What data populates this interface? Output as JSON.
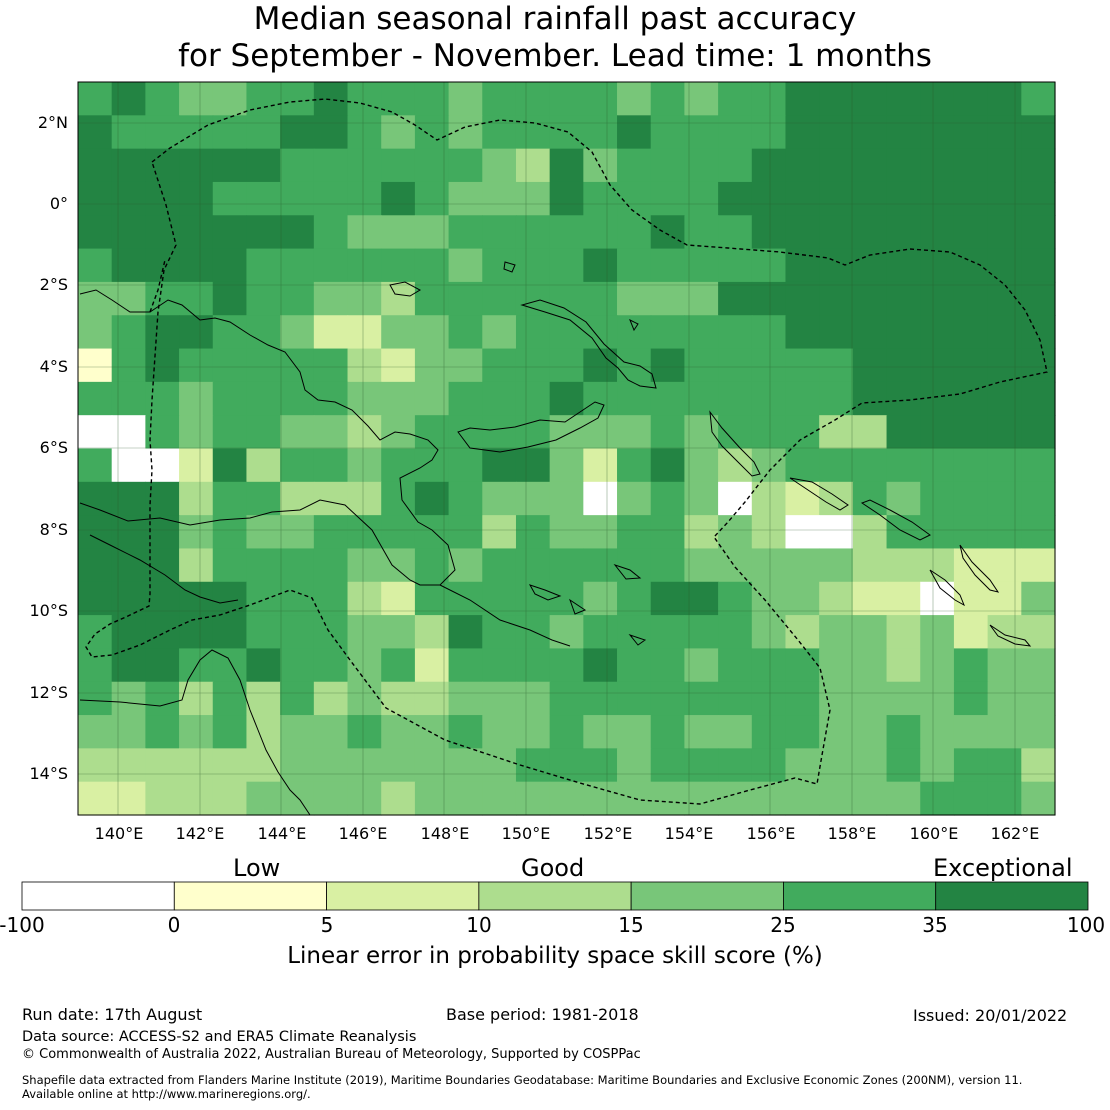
{
  "title_line1": "Median seasonal rainfall past accuracy",
  "title_line2": "for September - November. Lead time: 1 months",
  "lat_labels": [
    "2°N",
    "0°",
    "2°S",
    "4°S",
    "6°S",
    "8°S",
    "10°S",
    "12°S",
    "14°S"
  ],
  "lon_labels": [
    "140°E",
    "142°E",
    "144°E",
    "146°E",
    "148°E",
    "150°E",
    "152°E",
    "154°E",
    "156°E",
    "158°E",
    "160°E",
    "162°E"
  ],
  "colorbar": {
    "categories": [
      "Low",
      "Good",
      "Exceptional"
    ],
    "ticks": [
      "-100",
      "0",
      "5",
      "10",
      "15",
      "25",
      "35",
      "100"
    ],
    "colors": [
      "#ffffff",
      "#ffffcc",
      "#d9f0a3",
      "#addd8e",
      "#78c679",
      "#41ab5d",
      "#238443"
    ],
    "label": "Linear error in probability space skill score (%)"
  },
  "footer": {
    "run_date": "Run date: 17th August",
    "base_period": "Base period: 1981-2018",
    "issued": "Issued: 20/01/2022",
    "data_source": "Data source: ACCESS-S2 and ERA5 Climate Reanalysis",
    "copyright": "© Commonwealth of Australia 2022, Australian Bureau of Meteorology, Supported by COSPPac",
    "shapefile_line1": "Shapefile data extracted from Flanders Marine Institute (2019), Maritime Boundaries Geodatabase: Maritime Boundaries and Exclusive Economic Zones (200NM), version 11.",
    "shapefile_line2": "Available online at http://www.marineregions.org/."
  }
}
